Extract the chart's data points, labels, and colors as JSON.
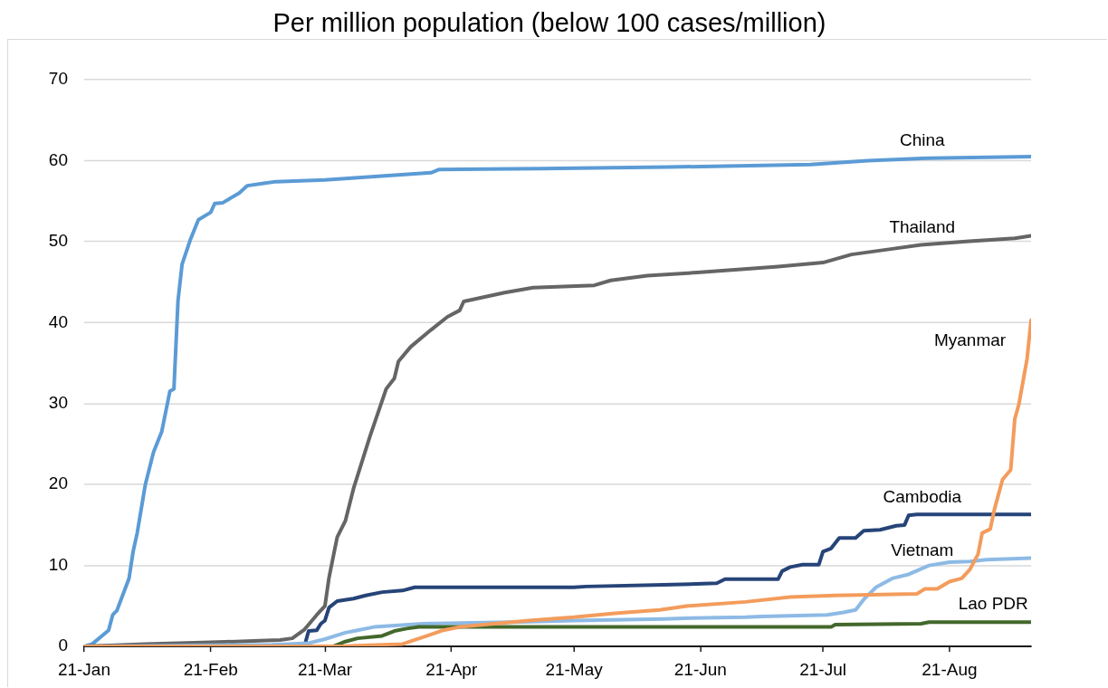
{
  "chart_data": {
    "type": "line",
    "title": "Per million population (below 100 cases/million)",
    "xlim": [
      "--01-21",
      "--09-10"
    ],
    "xticks": [
      {
        "value": "--01-21",
        "label": "21-Jan"
      },
      {
        "value": "--02-21",
        "label": "21-Feb"
      },
      {
        "value": "--03-21",
        "label": "21-Mar"
      },
      {
        "value": "--04-21",
        "label": "21-Apr"
      },
      {
        "value": "--05-21",
        "label": "21-May"
      },
      {
        "value": "--06-21",
        "label": "21-Jun"
      },
      {
        "value": "--07-21",
        "label": "21-Jul"
      },
      {
        "value": "--08-21",
        "label": "21-Aug"
      }
    ],
    "ylim": [
      0,
      70
    ],
    "yticks": [
      0,
      10,
      20,
      30,
      40,
      50,
      60,
      70
    ],
    "grid": "y",
    "legend": false,
    "marker": "none",
    "series": [
      {
        "name": "China",
        "color": "#5b9bd5",
        "x": [
          "--01-21",
          "--01-23",
          "--01-27",
          "--01-28",
          "--01-29",
          "--02-01",
          "--02-02",
          "--02-03",
          "--02-05",
          "--02-07",
          "--02-09",
          "--02-11",
          "--02-12",
          "--02-13",
          "--02-14",
          "--02-16",
          "--02-18",
          "--02-21",
          "--02-22",
          "--02-24",
          "--02-28",
          "--03-02",
          "--03-06",
          "--03-09",
          "--03-21",
          "--04-16",
          "--04-18",
          "--05-13",
          "--06-13",
          "--07-18",
          "--08-01",
          "--08-16",
          "--09-10"
        ],
        "values": [
          0,
          0.3,
          2.0,
          3.9,
          4.4,
          8.4,
          11.7,
          14,
          20,
          24,
          26.5,
          31.5,
          31.8,
          42.7,
          47.2,
          50.2,
          52.7,
          53.6,
          54.7,
          54.8,
          56,
          56.9,
          57.2,
          57.4,
          57.6,
          58.5,
          58.9,
          59,
          59.2,
          59.5,
          60,
          60.3,
          60.5
        ]
      },
      {
        "name": "Thailand",
        "color": "#656565",
        "x": [
          "--01-21",
          "--02-05",
          "--02-21",
          "--03-05",
          "--03-10",
          "--03-13",
          "--03-16",
          "--03-19",
          "--03-21",
          "--03-22",
          "--03-23",
          "--03-24",
          "--03-26",
          "--03-28",
          "--04-01",
          "--04-05",
          "--04-07",
          "--04-08",
          "--04-11",
          "--04-16",
          "--04-20",
          "--04-23",
          "--04-24",
          "--05-04",
          "--05-11",
          "--05-26",
          "--05-30",
          "--06-08",
          "--06-21",
          "--07-10",
          "--07-21",
          "--07-28",
          "--08-07",
          "--08-14",
          "--08-25",
          "--09-06",
          "--09-10"
        ],
        "values": [
          0,
          0.3,
          0.5,
          0.7,
          0.8,
          1.0,
          2.1,
          3.9,
          5.0,
          8.5,
          11.0,
          13.5,
          15.5,
          19.5,
          25.9,
          31.8,
          33.1,
          35.2,
          37.0,
          39.1,
          40.7,
          41.5,
          42.6,
          43.7,
          44.3,
          44.6,
          45.2,
          45.8,
          46.2,
          46.9,
          47.4,
          48.4,
          49.1,
          49.6,
          50.0,
          50.4,
          50.7
        ]
      },
      {
        "name": "Cambodia",
        "color": "#264478",
        "x": [
          "--01-21",
          "--03-16",
          "--03-17",
          "--03-19",
          "--03-20",
          "--03-21",
          "--03-22",
          "--03-24",
          "--03-28",
          "--03-31",
          "--04-04",
          "--04-09",
          "--04-12",
          "--05-21",
          "--05-24",
          "--06-12",
          "--06-25",
          "--06-27",
          "--07-10",
          "--07-11",
          "--07-13",
          "--07-16",
          "--07-20",
          "--07-21",
          "--07-23",
          "--07-25",
          "--07-29",
          "--07-31",
          "--08-04",
          "--08-08",
          "--08-10",
          "--08-11",
          "--08-13",
          "--09-10"
        ],
        "values": [
          0,
          0.1,
          1.9,
          2.0,
          2.8,
          3.2,
          4.8,
          5.6,
          5.9,
          6.3,
          6.7,
          6.9,
          7.3,
          7.3,
          7.4,
          7.6,
          7.8,
          8.3,
          8.3,
          9.3,
          9.8,
          10.1,
          10.1,
          11.7,
          12.1,
          13.4,
          13.4,
          14.3,
          14.4,
          14.9,
          15.0,
          16.2,
          16.3,
          16.3
        ]
      },
      {
        "name": "Vietnam",
        "color": "#8dbae5",
        "x": [
          "--01-21",
          "--02-10",
          "--03-08",
          "--03-17",
          "--03-21",
          "--03-26",
          "--03-29",
          "--04-02",
          "--04-08",
          "--04-14",
          "--05-06",
          "--05-21",
          "--06-12",
          "--06-19",
          "--07-02",
          "--07-06",
          "--07-22",
          "--07-26",
          "--07-29",
          "--07-31",
          "--08-03",
          "--08-07",
          "--08-11",
          "--08-16",
          "--08-21",
          "--08-26",
          "--08-30",
          "--09-10"
        ],
        "values": [
          0,
          0.1,
          0.2,
          0.4,
          0.9,
          1.7,
          2.0,
          2.4,
          2.6,
          2.8,
          3.0,
          3.2,
          3.4,
          3.5,
          3.6,
          3.7,
          3.9,
          4.2,
          4.5,
          5.8,
          7.3,
          8.4,
          8.9,
          10.0,
          10.4,
          10.5,
          10.7,
          10.9
        ]
      },
      {
        "name": "Lao PDR",
        "color": "#43682b",
        "x": [
          "--01-21",
          "--03-23",
          "--03-26",
          "--03-29",
          "--04-04",
          "--04-07",
          "--04-10",
          "--04-13",
          "--07-23",
          "--07-24",
          "--08-14",
          "--08-16",
          "--09-10"
        ],
        "values": [
          0,
          0,
          0.6,
          1.0,
          1.3,
          1.9,
          2.2,
          2.4,
          2.4,
          2.7,
          2.8,
          3.0,
          3.0
        ]
      },
      {
        "name": "Myanmar",
        "color": "#f39c5c",
        "x": [
          "--01-21",
          "--03-25",
          "--03-29",
          "--04-09",
          "--04-12",
          "--04-15",
          "--04-19",
          "--04-23",
          "--04-29",
          "--05-10",
          "--05-21",
          "--05-31",
          "--06-11",
          "--06-18",
          "--07-02",
          "--07-13",
          "--07-24",
          "--08-13",
          "--08-15",
          "--08-18",
          "--08-21",
          "--08-24",
          "--08-26",
          "--08-28",
          "--08-29",
          "--08-31",
          "--09-01",
          "--09-03",
          "--09-05",
          "--09-06",
          "--09-07",
          "--09-09",
          "--09-10"
        ],
        "values": [
          0,
          0,
          0.1,
          0.3,
          0.8,
          1.3,
          2.0,
          2.4,
          2.7,
          3.2,
          3.6,
          4.1,
          4.5,
          5.0,
          5.5,
          6.1,
          6.3,
          6.5,
          7.1,
          7.1,
          8.0,
          8.4,
          9.5,
          11.4,
          14.0,
          14.5,
          16.9,
          20.6,
          21.8,
          28.1,
          29.9,
          35.5,
          40.3
        ]
      }
    ]
  }
}
